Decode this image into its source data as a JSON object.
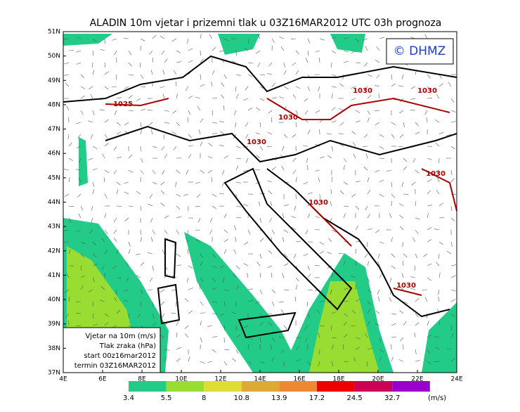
{
  "title": "ALADIN 10m vjetar i prizemni tlak u 03Z16MAR2012 UTC 03h prognoza",
  "logo": "© DHMZ",
  "lat_labels": [
    "51N",
    "50N",
    "49N",
    "48N",
    "47N",
    "46N",
    "45N",
    "44N",
    "43N",
    "42N",
    "41N",
    "40N",
    "39N",
    "38N",
    "37N"
  ],
  "lon_labels": [
    "4E",
    "6E",
    "8E",
    "10E",
    "12E",
    "14E",
    "16E",
    "18E",
    "20E",
    "22E",
    "24E"
  ],
  "isobar_labels": [
    "1025",
    "1030",
    "1030",
    "1030",
    "1030",
    "1030",
    "1030",
    "1030"
  ],
  "legend_box": [
    "Vjetar na 10m (m/s)",
    "Tlak zraka (hPa)",
    "start 00z16mar2012",
    "termin 03Z16MAR2012"
  ],
  "colorbar": {
    "values": [
      3.4,
      5.5,
      8,
      10.8,
      13.9,
      17.2,
      24.5,
      32.7
    ],
    "colors": [
      "#22cc88",
      "#99dd33",
      "#dddd33",
      "#ddaa33",
      "#ee8833",
      "#ee0000",
      "#cc0055",
      "#9900cc"
    ],
    "unit": "(m/s)"
  }
}
